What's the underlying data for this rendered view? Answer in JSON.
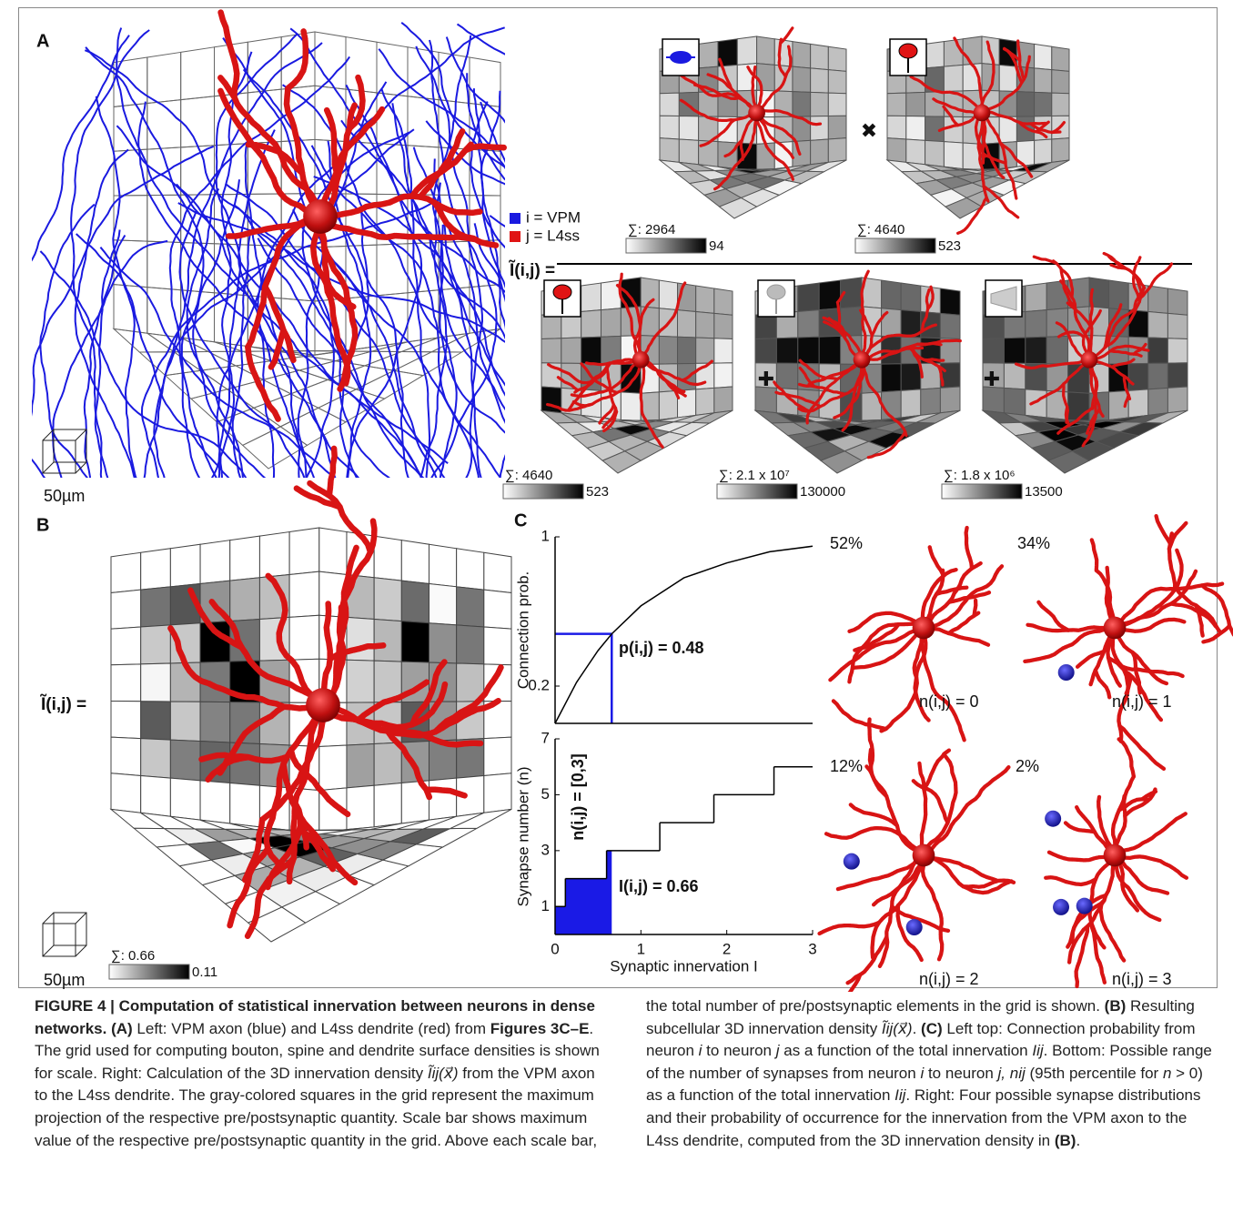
{
  "panels": {
    "a": "A",
    "b": "B",
    "c": "C"
  },
  "panel_a": {
    "legend": [
      {
        "name": "i = VPM",
        "color": "#1a1ae0"
      },
      {
        "name": "j = L4ss",
        "color": "#e01414"
      }
    ],
    "equation": "Ĩ(i,j) =",
    "scale_label": "50µm",
    "operators": [
      "✖",
      "✚",
      "✚"
    ],
    "scale_bars": [
      {
        "sum": "∑: 2964",
        "max": "94"
      },
      {
        "sum": "∑: 4640",
        "max": "523"
      },
      {
        "sum": "∑: 4640",
        "max": "523"
      },
      {
        "sum": "∑: 2.1 x 10⁷",
        "max": "130000"
      },
      {
        "sum": "∑: 1.8 x 10⁶",
        "max": "13500"
      }
    ]
  },
  "panel_b": {
    "equation": "Ĩ(i,j) =",
    "scale_label": "50µm",
    "scale_bar": {
      "sum": "∑: 0.66",
      "max": "0.11"
    }
  },
  "chart_data": [
    {
      "type": "line",
      "y_label": "Connection prob.",
      "x": [
        0,
        0.25,
        0.5,
        0.66,
        1,
        1.5,
        2,
        2.5,
        3
      ],
      "values": [
        0,
        0.22,
        0.39,
        0.48,
        0.63,
        0.78,
        0.86,
        0.92,
        0.95
      ],
      "color": "#000000",
      "xlim": [
        0,
        3
      ],
      "ylim": [
        0,
        1
      ],
      "yticks": [
        0.2,
        1
      ],
      "annotations": [
        "p(i,j) = 0.48"
      ],
      "highlight": {
        "x": 0.66,
        "y": 0.48,
        "color": "#1a1ae6"
      }
    },
    {
      "type": "step",
      "x_label": "Synaptic innervation I",
      "y_label": "Synapse number (n)",
      "x": [
        0,
        0.12,
        0.6,
        1.22,
        1.85,
        2.55
      ],
      "values": [
        1,
        2,
        3,
        4,
        5,
        6
      ],
      "color": "#000000",
      "xlim": [
        0,
        3
      ],
      "ylim": [
        0,
        7
      ],
      "xticks": [
        0,
        1,
        2,
        3
      ],
      "yticks": [
        1,
        3,
        5,
        7
      ],
      "annotations": [
        "n(i,j) = [0,3]",
        "I(i,j) = 0.66"
      ],
      "highlight": {
        "x": 0.66,
        "color": "#1a1ae6"
      }
    }
  ],
  "synapse_panels": [
    {
      "percent": "52%",
      "label": "n(i,j) = 0",
      "n": 0
    },
    {
      "percent": "34%",
      "label": "n(i,j) = 1",
      "n": 1
    },
    {
      "percent": "12%",
      "label": "n(i,j) = 2",
      "n": 2
    },
    {
      "percent": "2%",
      "label": "n(i,j) = 3",
      "n": 3
    }
  ],
  "caption": {
    "segments": [
      {
        "text": "FIGURE 4 | Computation of statistical innervation between neurons in dense networks. (A)",
        "style": "b"
      },
      {
        "text": " Left: VPM axon (blue) and L4ss dendrite (red) from "
      },
      {
        "text": "Figures 3C–E",
        "style": "b"
      },
      {
        "text": ". The grid used for computing bouton, spine and dendrite surface densities is shown for scale. Right: Calculation of the 3D innervation density "
      },
      {
        "text": "Ĩij(x⃗)",
        "style": "i"
      },
      {
        "text": " from the VPM axon to the L4ss dendrite. The gray-colored squares in the grid represent the maximum projection of the respective pre/postsynaptic quantity. Scale bar shows maximum value of the respective pre/postsynaptic quantity in the grid. Above each scale bar, the total number of pre/postsynaptic elements in the grid is shown. "
      },
      {
        "text": "(B)",
        "style": "b"
      },
      {
        "text": " Resulting subcellular 3D innervation density "
      },
      {
        "text": "Ĩij(x⃗)",
        "style": "i"
      },
      {
        "text": ". "
      },
      {
        "text": "(C)",
        "style": "b"
      },
      {
        "text": " Left top: Connection probability from neuron "
      },
      {
        "text": "i",
        "style": "i"
      },
      {
        "text": " to neuron "
      },
      {
        "text": "j",
        "style": "i"
      },
      {
        "text": " as a function of the total innervation "
      },
      {
        "text": "Iij",
        "style": "i"
      },
      {
        "text": ". Bottom: Possible range of the number of synapses from neuron "
      },
      {
        "text": "i",
        "style": "i"
      },
      {
        "text": " to neuron "
      },
      {
        "text": "j, nij",
        "style": "i"
      },
      {
        "text": " (95th percentile for "
      },
      {
        "text": "n",
        "style": "i"
      },
      {
        "text": " > 0) as a function of the total innervation "
      },
      {
        "text": "Iij",
        "style": "i"
      },
      {
        "text": ". Right: Four possible synapse distributions and their probability of occurrence for the innervation from the VPM axon to the L4ss dendrite, computed from the 3D innervation density in "
      },
      {
        "text": "(B)",
        "style": "b"
      },
      {
        "text": "."
      }
    ]
  }
}
